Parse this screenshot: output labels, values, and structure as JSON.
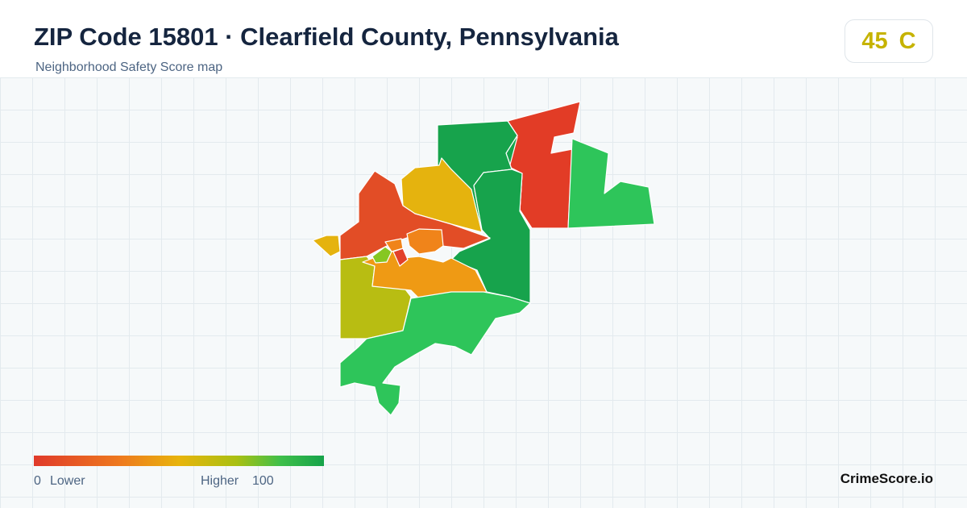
{
  "header": {
    "title": "ZIP Code 15801 · Clearfield County, Pennsylvania",
    "subtitle": "Neighborhood Safety Score map"
  },
  "score": {
    "value": 45,
    "grade": "C"
  },
  "legend": {
    "min": 0,
    "min_label": "Lower",
    "max_label": "Higher",
    "max": 100
  },
  "brand": "CrimeScore.io"
}
